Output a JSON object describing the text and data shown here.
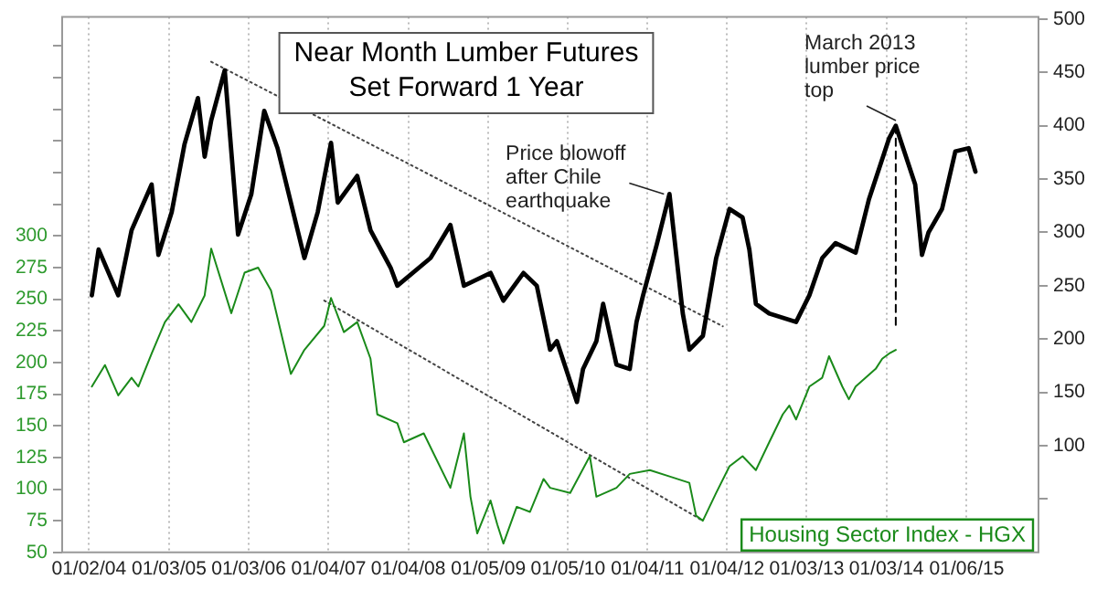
{
  "chart_data": {
    "type": "line",
    "title": "Near Month Lumber Futures",
    "subtitle": "Set Forward 1 Year",
    "xlim": [
      "2003-09-01",
      "2015-12-01"
    ],
    "xticks": [
      {
        "value": "2004-01-02",
        "label": "01/02/04"
      },
      {
        "value": "2005-01-03",
        "label": "01/03/05"
      },
      {
        "value": "2006-01-03",
        "label": "01/03/06"
      },
      {
        "value": "2007-01-04",
        "label": "01/04/07"
      },
      {
        "value": "2008-01-04",
        "label": "01/04/08"
      },
      {
        "value": "2009-01-05",
        "label": "01/05/09"
      },
      {
        "value": "2010-01-05",
        "label": "01/05/10"
      },
      {
        "value": "2011-01-04",
        "label": "01/04/11"
      },
      {
        "value": "2012-01-04",
        "label": "01/04/12"
      },
      {
        "value": "2013-01-03",
        "label": "01/03/13"
      },
      {
        "value": "2014-01-03",
        "label": "01/03/14"
      },
      {
        "value": "2015-01-06",
        "label": "01/06/15"
      }
    ],
    "ylim": [
      50,
      473
    ],
    "yticks": [
      50,
      75,
      100,
      125,
      150,
      175,
      200,
      225,
      250,
      275,
      300,
      {
        "value": 325,
        "label": null
      },
      {
        "value": 350,
        "label": null
      },
      {
        "value": 375,
        "label": null
      },
      {
        "value": 400,
        "label": null
      },
      {
        "value": 425,
        "label": null
      },
      {
        "value": 450,
        "label": null
      }
    ],
    "y2lim": [
      0,
      502
    ],
    "y2ticks": [
      {
        "value": 50,
        "label": null
      },
      100,
      150,
      200,
      250,
      300,
      350,
      400,
      450,
      500
    ],
    "grid": "x",
    "legend": false,
    "marker": "none",
    "series": [
      {
        "axis": "y2",
        "color": "#000000",
        "x": [
          "2004-01",
          "2004-02",
          "2004-05",
          "2004-07",
          "2004-10",
          "2004-11",
          "2005-01",
          "2005-03",
          "2005-05",
          "2005-06",
          "2005-07",
          "2005-09",
          "2005-11",
          "2006-01",
          "2006-03",
          "2006-05",
          "2006-07",
          "2006-09",
          "2006-11",
          "2007-01",
          "2007-02",
          "2007-05",
          "2007-07",
          "2007-10",
          "2007-11",
          "2008-04",
          "2008-07",
          "2008-09",
          "2009-01",
          "2009-03",
          "2009-06",
          "2009-08",
          "2009-10",
          "2009-11",
          "2010-02",
          "2010-03",
          "2010-05",
          "2010-06",
          "2010-08",
          "2010-10",
          "2010-11",
          "2010-12",
          "2011-02",
          "2011-04",
          "2011-06",
          "2011-07",
          "2011-09",
          "2011-11",
          "2012-01",
          "2012-03",
          "2012-04",
          "2012-05",
          "2012-07",
          "2012-11",
          "2013-01",
          "2013-03",
          "2013-05",
          "2013-08",
          "2013-10",
          "2014-01",
          "2014-02",
          "2014-05",
          "2014-06",
          "2014-07",
          "2014-09",
          "2014-11",
          "2015-01",
          "2015-02"
        ],
        "values": [
          241,
          284,
          241,
          302,
          345,
          279,
          319,
          383,
          426,
          371,
          405,
          452,
          298,
          336,
          414,
          379,
          328,
          276,
          319,
          384,
          328,
          353,
          302,
          267,
          250,
          276,
          307,
          250,
          262,
          236,
          262,
          250,
          190,
          198,
          141,
          172,
          198,
          233,
          176,
          172,
          216,
          241,
          288,
          336,
          224,
          190,
          203,
          276,
          322,
          314,
          284,
          233,
          224,
          216,
          241,
          276,
          290,
          281,
          331,
          388,
          400,
          345,
          279,
          300,
          322,
          376,
          379,
          357
        ]
      },
      {
        "name": "Housing Sector Index - HGX",
        "color": "#1a8a1a",
        "x": [
          "2004-01",
          "2004-03",
          "2004-05",
          "2004-07",
          "2004-08",
          "2004-10",
          "2004-12",
          "2005-02",
          "2005-04",
          "2005-06",
          "2005-07",
          "2005-10",
          "2005-12",
          "2006-02",
          "2006-04",
          "2006-07",
          "2006-09",
          "2006-12",
          "2007-01",
          "2007-03",
          "2007-05",
          "2007-07",
          "2007-08",
          "2007-11",
          "2007-12",
          "2008-03",
          "2008-07",
          "2008-09",
          "2008-10",
          "2008-11",
          "2009-01",
          "2009-02",
          "2009-03",
          "2009-05",
          "2009-07",
          "2009-09",
          "2009-10",
          "2010-01",
          "2010-04",
          "2010-05",
          "2010-08",
          "2010-10",
          "2011-01",
          "2011-04",
          "2011-07",
          "2011-08",
          "2011-09",
          "2011-11",
          "2012-01",
          "2012-03",
          "2012-05",
          "2012-07",
          "2012-09",
          "2012-10",
          "2012-11",
          "2013-01",
          "2013-03",
          "2013-04",
          "2013-06",
          "2013-07",
          "2013-08",
          "2013-11",
          "2013-12",
          "2014-01",
          "2014-02"
        ],
        "values": [
          181,
          198,
          174,
          188,
          181,
          207,
          232,
          246,
          232,
          253,
          290,
          239,
          271,
          275,
          257,
          191,
          210,
          229,
          251,
          224,
          232,
          203,
          159,
          152,
          137,
          144,
          101,
          144,
          94,
          65,
          91,
          72,
          57,
          86,
          82,
          108,
          101,
          97,
          126,
          94,
          101,
          112,
          115,
          110,
          105,
          79,
          75,
          97,
          118,
          126,
          115,
          137,
          159,
          166,
          155,
          181,
          188,
          205,
          181,
          171,
          181,
          195,
          203,
          207,
          210
        ]
      },
      {
        "type": "line",
        "axis": "y2",
        "color": "#444444",
        "line_style": "dotted",
        "x": [
          "2005-07",
          "2011-12"
        ],
        "values": [
          460,
          212
        ]
      },
      {
        "type": "line",
        "color": "#444444",
        "line_style": "dotted",
        "x": [
          "2006-12",
          "2011-09"
        ],
        "values": [
          249,
          75
        ]
      },
      {
        "type": "line",
        "axis": "y2",
        "color": "#000000",
        "line_style": "dashed",
        "x": [
          "2014-02",
          "2014-02"
        ],
        "values": [
          400,
          210
        ]
      }
    ],
    "annotations": [
      {
        "text": "Price blowoff after Chile earthquake",
        "x": "2011-04",
        "y": 336
      },
      "March 2013 lumber price top"
    ]
  }
}
